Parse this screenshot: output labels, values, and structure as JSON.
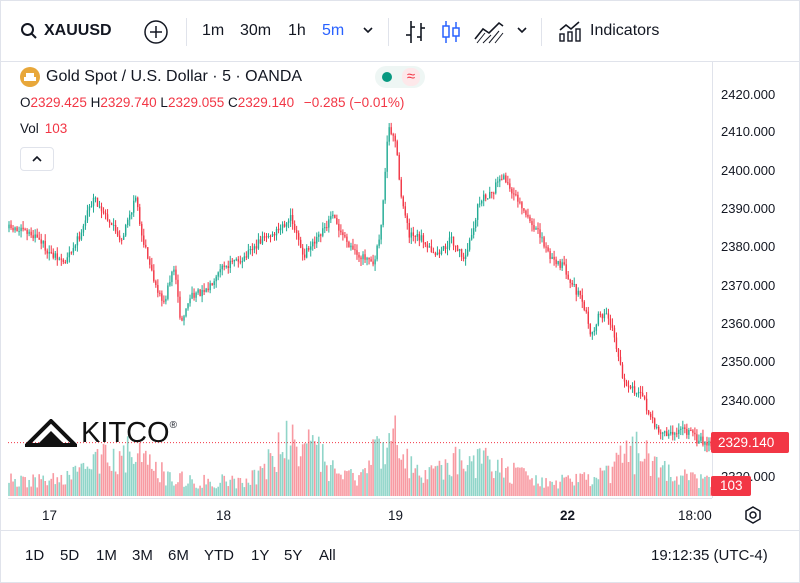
{
  "toolbar": {
    "symbol": "XAUUSD",
    "intervals": [
      "1m",
      "30m",
      "1h",
      "5m"
    ],
    "active_interval": "5m",
    "indicators_label": "Indicators"
  },
  "legend": {
    "title": "Gold Spot / U.S. Dollar · 5 · OANDA",
    "open_label": "O",
    "open": "2329.425",
    "high_label": "H",
    "high": "2329.740",
    "low_label": "L",
    "low": "2329.055",
    "close_label": "C",
    "close": "2329.140",
    "change": "−0.285 (−0.01%)",
    "vol_label": "Vol",
    "vol_value": "103"
  },
  "price_axis": {
    "ticks": [
      "2420.000",
      "2410.000",
      "2400.000",
      "2390.000",
      "2380.000",
      "2370.000",
      "2360.000",
      "2350.000",
      "2340.000",
      "2320.000"
    ],
    "current_price": "2329.140",
    "current_volume": "103"
  },
  "time_axis": {
    "labels": [
      "17",
      "18",
      "19",
      "22",
      "18:00"
    ],
    "bold_label": "22"
  },
  "bottom": {
    "ranges": [
      "1D",
      "5D",
      "1M",
      "3M",
      "6M",
      "YTD",
      "1Y",
      "5Y",
      "All"
    ],
    "clock": "19:12:35 (UTC-4)"
  },
  "watermark": {
    "brand": "KITCO"
  },
  "colors": {
    "up": "#22ab94",
    "down": "#f23645",
    "accent": "#2962ff",
    "gold": "#e8a73a"
  },
  "chart_data": {
    "type": "candlestick",
    "title": "Gold Spot / U.S. Dollar · 5 · OANDA",
    "y_range": [
      2318,
      2425
    ],
    "x_labels": [
      "17",
      "18",
      "19",
      "22",
      "18:00"
    ],
    "close_path": [
      [
        0,
        2385
      ],
      [
        0.02,
        2384
      ],
      [
        0.04,
        2383
      ],
      [
        0.06,
        2378
      ],
      [
        0.08,
        2376
      ],
      [
        0.1,
        2383
      ],
      [
        0.12,
        2393
      ],
      [
        0.14,
        2388
      ],
      [
        0.16,
        2382
      ],
      [
        0.18,
        2393
      ],
      [
        0.19,
        2383
      ],
      [
        0.2,
        2376
      ],
      [
        0.21,
        2370
      ],
      [
        0.22,
        2365
      ],
      [
        0.235,
        2375
      ],
      [
        0.245,
        2360
      ],
      [
        0.26,
        2368
      ],
      [
        0.28,
        2368
      ],
      [
        0.3,
        2375
      ],
      [
        0.32,
        2376
      ],
      [
        0.34,
        2378
      ],
      [
        0.36,
        2382
      ],
      [
        0.38,
        2384
      ],
      [
        0.4,
        2388
      ],
      [
        0.41,
        2383
      ],
      [
        0.42,
        2378
      ],
      [
        0.44,
        2382
      ],
      [
        0.46,
        2388
      ],
      [
        0.48,
        2382
      ],
      [
        0.5,
        2378
      ],
      [
        0.52,
        2375
      ],
      [
        0.53,
        2385
      ],
      [
        0.54,
        2411
      ],
      [
        0.55,
        2408
      ],
      [
        0.56,
        2392
      ],
      [
        0.57,
        2383
      ],
      [
        0.59,
        2382
      ],
      [
        0.61,
        2378
      ],
      [
        0.63,
        2382
      ],
      [
        0.65,
        2377
      ],
      [
        0.67,
        2392
      ],
      [
        0.69,
        2395
      ],
      [
        0.7,
        2399
      ],
      [
        0.71,
        2397
      ],
      [
        0.73,
        2390
      ],
      [
        0.75,
        2385
      ],
      [
        0.77,
        2378
      ],
      [
        0.79,
        2375
      ],
      [
        0.81,
        2368
      ],
      [
        0.82,
        2364
      ],
      [
        0.83,
        2357
      ],
      [
        0.84,
        2362
      ],
      [
        0.85,
        2363
      ],
      [
        0.86,
        2359
      ],
      [
        0.875,
        2346
      ],
      [
        0.89,
        2343
      ],
      [
        0.905,
        2340
      ],
      [
        0.92,
        2333
      ],
      [
        0.94,
        2331
      ],
      [
        0.96,
        2333
      ],
      [
        0.98,
        2330
      ],
      [
        1.0,
        2329.14
      ]
    ],
    "volume_peak_relative": [
      0.42,
      0.8,
      0.83,
      0.43
    ],
    "volume_note": "histogram of up/down volume bars along the bottom"
  }
}
